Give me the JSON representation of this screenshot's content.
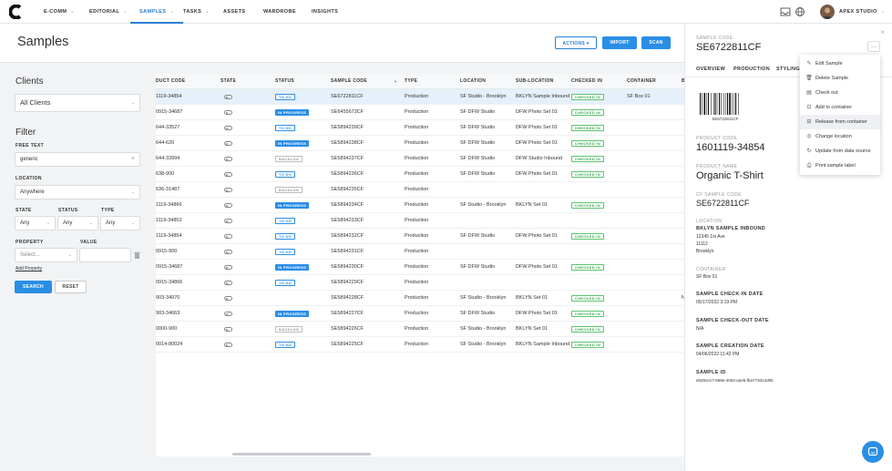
{
  "nav": {
    "items": [
      {
        "label": "E-COMM",
        "chev": "⌄"
      },
      {
        "label": "EDITORIAL",
        "chev": "⌄"
      },
      {
        "label": "SAMPLES",
        "chev": "⌄"
      },
      {
        "label": "TASKS",
        "chev": "⌄"
      },
      {
        "label": "ASSETS",
        "chev": ""
      },
      {
        "label": "WARDROBE",
        "chev": ""
      },
      {
        "label": "INSIGHTS",
        "chev": ""
      }
    ],
    "brand": "APEX STUDIO",
    "brand_chev": "⌄"
  },
  "header": {
    "title": "Samples",
    "actions_label": "ACTIONS ▾",
    "import_label": "IMPORT",
    "scan_label": "SCAN"
  },
  "sidebar": {
    "clients_heading": "Clients",
    "clients_value": "All Clients",
    "filter_heading": "Filter",
    "free_text_label": "FREE TEXT",
    "free_text_value": "generic",
    "clear_glyph": "×",
    "location_label": "LOCATION",
    "location_value": "Anywhere",
    "state_label": "STATE",
    "status_label": "STATUS",
    "type_label": "TYPE",
    "state_value": "Any",
    "status_value": "Any",
    "type_value": "Any",
    "property_label": "PROPERTY",
    "value_label": "VALUE",
    "property_placeholder": "Select...",
    "add_property": "Add Property",
    "search_label": "SEARCH",
    "reset_label": "RESET"
  },
  "table": {
    "columns": [
      "DUCT CODE",
      "STATE",
      "STATUS",
      "SAMPLE CODE",
      "TYPE",
      "LOCATION",
      "SUB-LOCATION",
      "CHECKED IN",
      "CONTAINER",
      "B"
    ],
    "sort_glyph": "▼",
    "rows": [
      {
        "code": "1119-34854",
        "status": "TO DO",
        "kind": "todo",
        "sample": "SE6722811CF",
        "type": "Production",
        "loc": "SF Studio - Brooklyn",
        "sub": "BKLYN Sample Inbound",
        "checked": "CHECKED IN",
        "container": "SF Box 01",
        "extra": ""
      },
      {
        "code": "0915-34687",
        "status": "IN PROGRESS",
        "kind": "prog",
        "sample": "SE6455673CF",
        "type": "Production",
        "loc": "SF DFW Studio",
        "sub": "DFW Photo Set 01",
        "checked": "CHECKED IN",
        "container": "",
        "extra": ""
      },
      {
        "code": "644-33527",
        "status": "TO DO",
        "kind": "todo",
        "sample": "SE5894239CF",
        "type": "Production",
        "loc": "SF DFW Studio",
        "sub": "DFW Photo Set 01",
        "checked": "CHECKED IN",
        "container": "",
        "extra": ""
      },
      {
        "code": "644-620",
        "status": "IN PROGRESS",
        "kind": "prog",
        "sample": "SE5894238CF",
        "type": "Production",
        "loc": "SF DFW Studio",
        "sub": "DFW Photo Set 01",
        "checked": "CHECKED IN",
        "container": "",
        "extra": ""
      },
      {
        "code": "644-33994",
        "status": "BACKLOG",
        "kind": "back",
        "sample": "SE5894237CF",
        "type": "Production",
        "loc": "SF DFW Studio",
        "sub": "DFW Studio Inbound",
        "checked": "CHECKED IN",
        "container": "",
        "extra": ""
      },
      {
        "code": "638-900",
        "status": "TO DO",
        "kind": "todo",
        "sample": "SE5894236CF",
        "type": "Production",
        "loc": "SF DFW Studio",
        "sub": "DFW Photo Set 01",
        "checked": "CHECKED IN",
        "container": "",
        "extra": ""
      },
      {
        "code": "636-31487",
        "status": "BACKLOG",
        "kind": "back",
        "sample": "SE5894235CF",
        "type": "Production",
        "loc": "",
        "sub": "",
        "checked": "",
        "container": "",
        "extra": ""
      },
      {
        "code": "1119-34866",
        "status": "IN PROGRESS",
        "kind": "prog",
        "sample": "SE5894234CF",
        "type": "Production",
        "loc": "SF Studio - Brooklyn",
        "sub": "BKLYN Set 01",
        "checked": "CHECKED IN",
        "container": "",
        "extra": ""
      },
      {
        "code": "1119-34853",
        "status": "TO DO",
        "kind": "todo",
        "sample": "SE5894233CF",
        "type": "Production",
        "loc": "",
        "sub": "",
        "checked": "",
        "container": "",
        "extra": ""
      },
      {
        "code": "1119-34854",
        "status": "TO DO",
        "kind": "todo",
        "sample": "SE5894232CF",
        "type": "Production",
        "loc": "SF DFW Studio",
        "sub": "DFW Photo Set 01",
        "checked": "CHECKED IN",
        "container": "",
        "extra": ""
      },
      {
        "code": "0915-900",
        "status": "TO DO",
        "kind": "todo",
        "sample": "SE5894231CF",
        "type": "Production",
        "loc": "",
        "sub": "",
        "checked": "",
        "container": "",
        "extra": ""
      },
      {
        "code": "0915-34687",
        "status": "IN PROGRESS",
        "kind": "prog",
        "sample": "SE5894230CF",
        "type": "Production",
        "loc": "SF DFW Studio",
        "sub": "DFW Photo Set 01",
        "checked": "CHECKED IN",
        "container": "",
        "extra": ""
      },
      {
        "code": "0915-34866",
        "status": "TO DO",
        "kind": "todo",
        "sample": "SE5894229CF",
        "type": "Production",
        "loc": "",
        "sub": "",
        "checked": "",
        "container": "",
        "extra": ""
      },
      {
        "code": "903-34970",
        "status": "",
        "kind": "",
        "sample": "SE5894228CF",
        "type": "Production",
        "loc": "SF Studio - Brooklyn",
        "sub": "BKLYN Set 01",
        "checked": "CHECKED IN",
        "container": "",
        "extra": "N"
      },
      {
        "code": "903-34663",
        "status": "IN PROGRESS",
        "kind": "prog",
        "sample": "SE5894227CF",
        "type": "Production",
        "loc": "SF DFW Studio",
        "sub": "DFW Photo Set 01",
        "checked": "CHECKED IN",
        "container": "",
        "extra": ""
      },
      {
        "code": "0000-900",
        "status": "BACKLOG",
        "kind": "back",
        "sample": "SE5894226CF",
        "type": "Production",
        "loc": "SF Studio - Brooklyn",
        "sub": "BKLYN Set 01",
        "checked": "CHECKED IN",
        "container": "",
        "extra": ""
      },
      {
        "code": "0014-80024",
        "status": "TO DO",
        "kind": "todo",
        "sample": "SE5894225CF",
        "type": "Production",
        "loc": "SF Studio - Brooklyn",
        "sub": "BKLYN Sample Inbound",
        "checked": "CHECKED IN",
        "container": "",
        "extra": ""
      }
    ]
  },
  "panel": {
    "close_glyph": "×",
    "sample_code_label": "SAMPLE CODE",
    "sample_code": "SE6722811CF",
    "more_glyph": "···",
    "tabs": [
      "OVERVIEW",
      "PRODUCTION",
      "STYLING"
    ],
    "barcode_text": "SE6722811CF",
    "product_code_label": "PRODUCT CODE",
    "product_code": "1601119-34854",
    "product_name_label": "PRODUCT NAME",
    "product_name": "Organic T-Shirt",
    "cf_code_label": "CF SAMPLE CODE",
    "cf_code": "SE6722811CF",
    "location_label": "LOCATION",
    "location_name": "BKLYN SAMPLE INBOUND",
    "address": [
      "12345 1st Ave",
      "11112",
      "Brooklyn"
    ],
    "container_label": "CONTAINER",
    "container_value": "SF Box 01",
    "checkin_label": "SAMPLE CHECK-IN DATE",
    "checkin_value": "05/17/2022 3:19 PM",
    "checkout_label": "SAMPLE CHECK-OUT DATE",
    "checkout_value": "N/A",
    "creation_label": "SAMPLE CREATION DATE",
    "creation_value": "04/06/2022 11:42 PM",
    "id_label": "SAMPLE ID",
    "id_value": "eb25ce17-568e-4054-a2eb-fba773d12d0b"
  },
  "menu": {
    "items": [
      {
        "label": "Edit Sample",
        "icon": "✎"
      },
      {
        "label": "Delete Sample",
        "icon": "🗑"
      },
      {
        "label": "Check out",
        "icon": "▤"
      },
      {
        "label": "Add to container",
        "icon": "⊡"
      },
      {
        "label": "Release from container",
        "icon": "⊟"
      },
      {
        "label": "Change location",
        "icon": "◎"
      },
      {
        "label": "Update from data source",
        "icon": "↻"
      },
      {
        "label": "Print sample label",
        "icon": "⎙"
      }
    ]
  },
  "colors": {
    "accent": "#2a8ee6",
    "checked": "#3aa84e"
  }
}
